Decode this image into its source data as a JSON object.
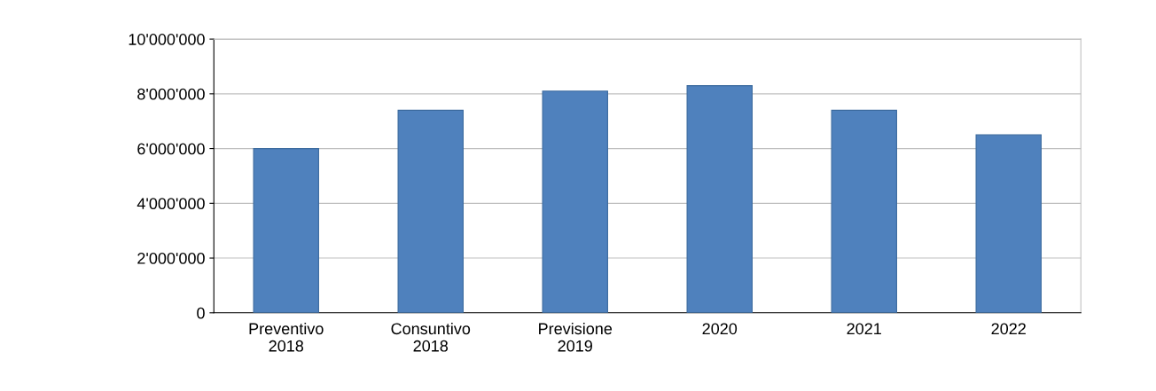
{
  "chart_data": {
    "type": "bar",
    "categories": [
      "Preventivo\n2018",
      "Consuntivo\n2018",
      "Previsione\n2019",
      "2020",
      "2021",
      "2022"
    ],
    "values": [
      6000000,
      7400000,
      8100000,
      8300000,
      7400000,
      6500000
    ],
    "color": "#4f81bd",
    "ylim": [
      0,
      10000000
    ],
    "yticks": [
      {
        "value": 0,
        "label": "0"
      },
      {
        "value": 2000000,
        "label": "2'000'000"
      },
      {
        "value": 4000000,
        "label": "4'000'000"
      },
      {
        "value": 6000000,
        "label": "6'000'000"
      },
      {
        "value": 8000000,
        "label": "8'000'000"
      },
      {
        "value": 10000000,
        "label": "10'000'000"
      }
    ],
    "grid": "y",
    "legend": false
  }
}
